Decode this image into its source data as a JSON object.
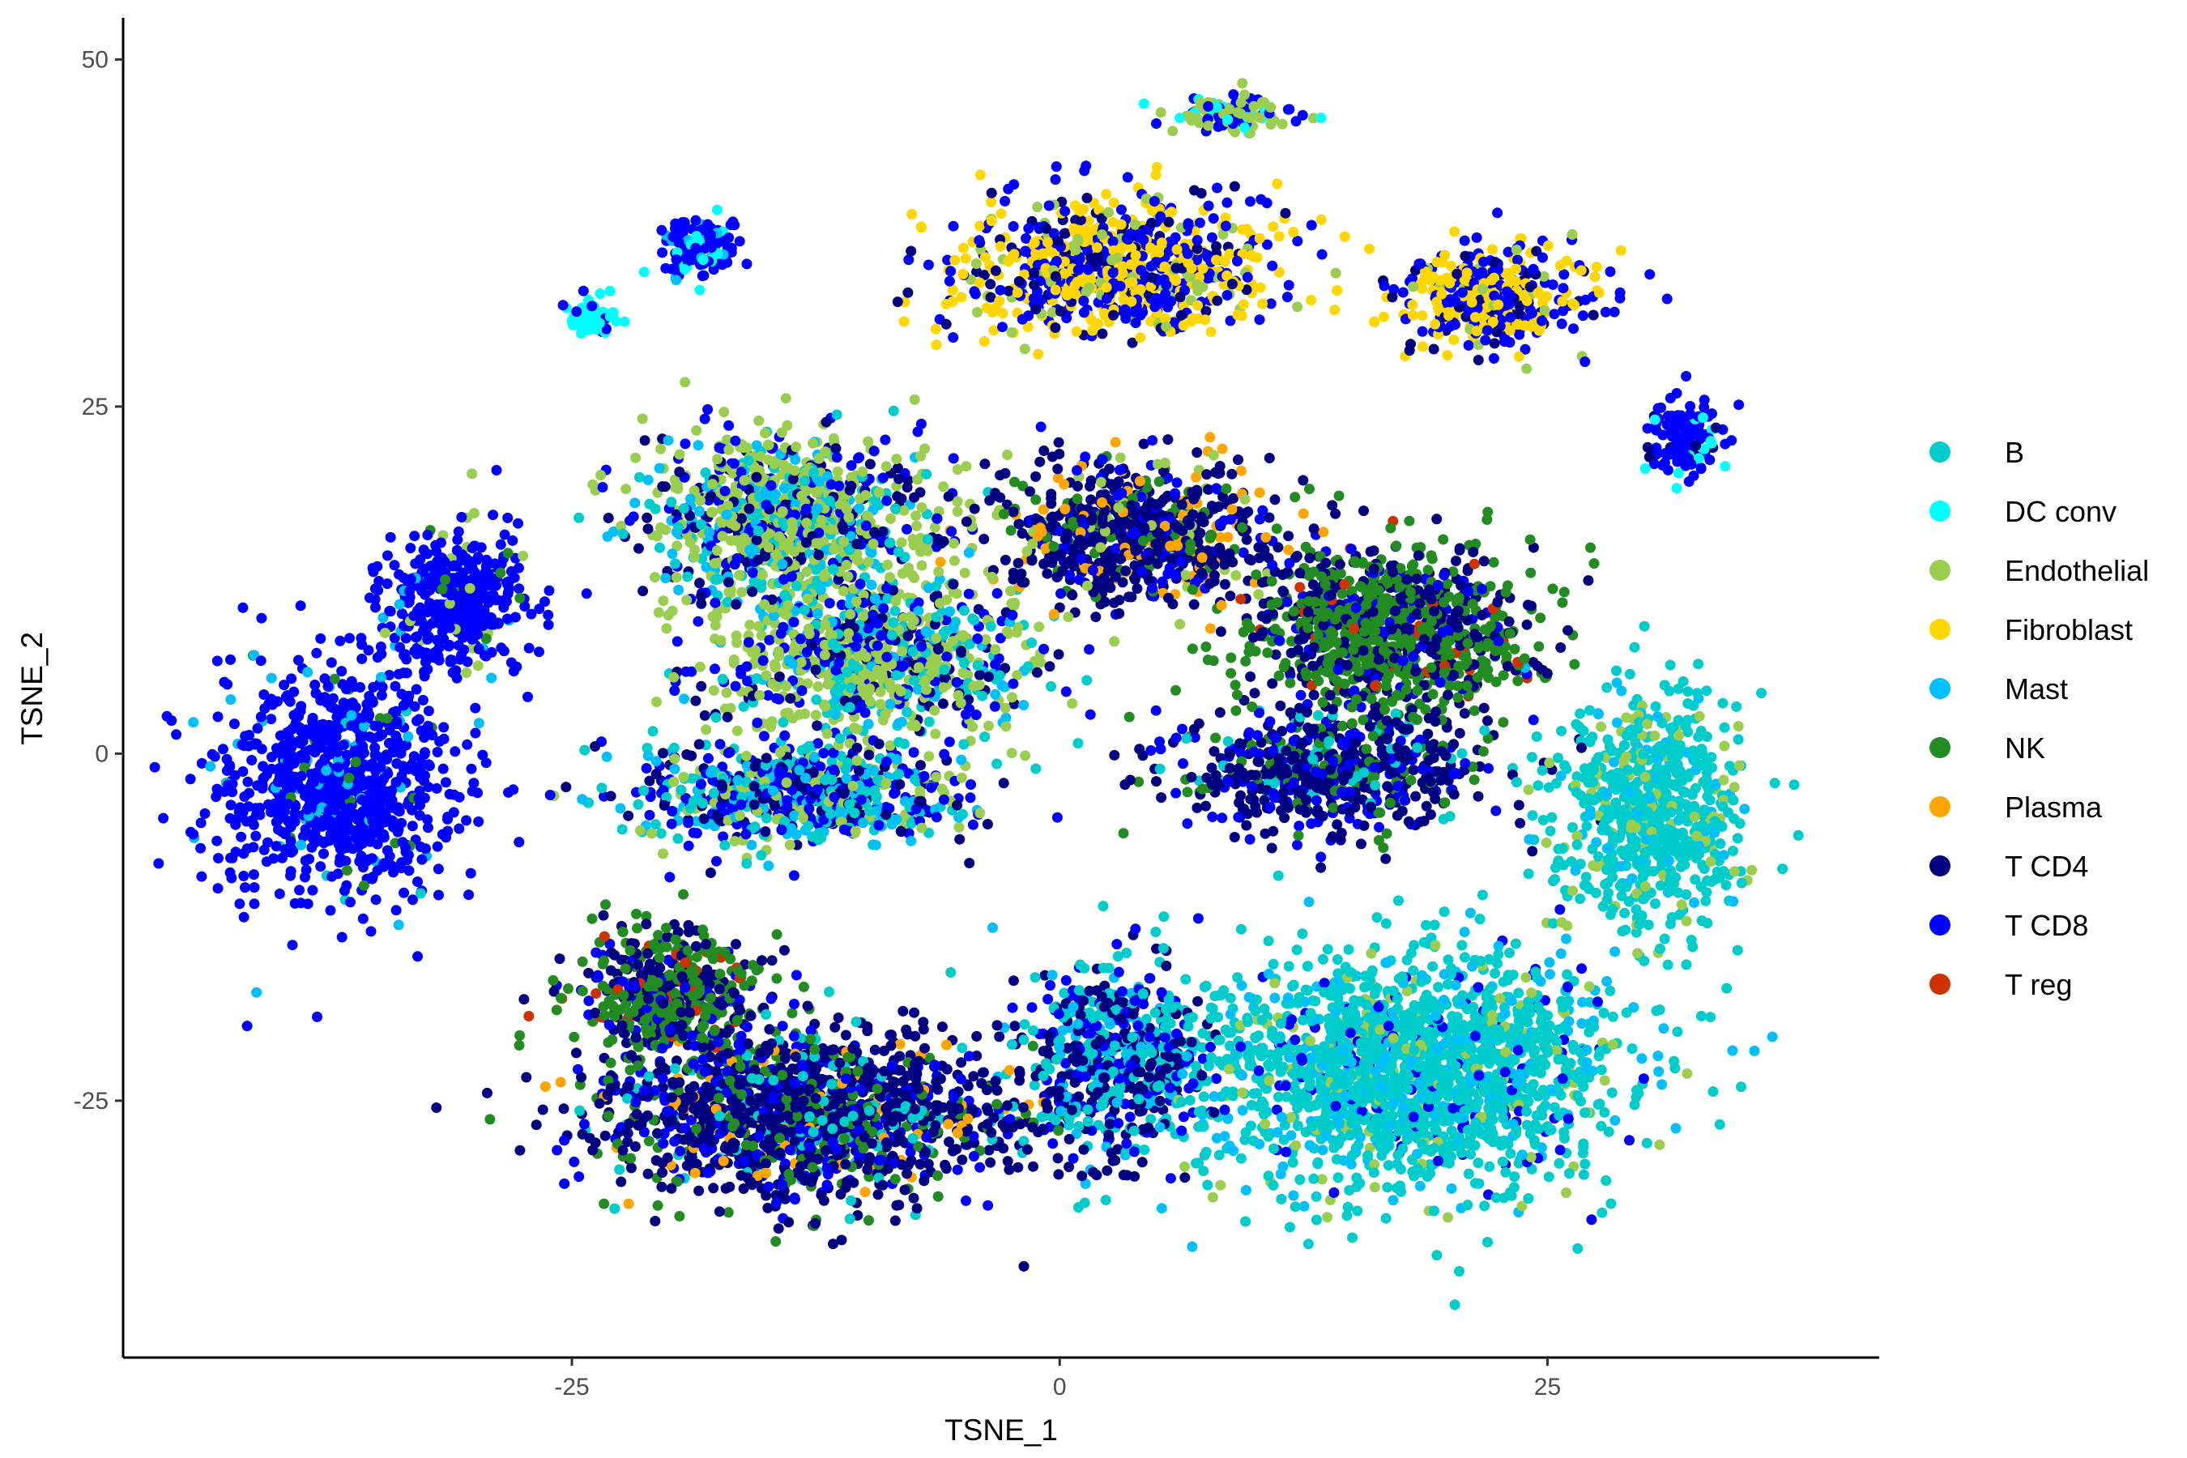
{
  "chart_data": {
    "type": "scatter",
    "title": "",
    "xlabel": "TSNE_1",
    "ylabel": "TSNE_2",
    "xlim": [
      -48,
      42
    ],
    "ylim": [
      -43.5,
      53
    ],
    "x_ticks": [
      -25,
      0,
      25
    ],
    "y_ticks": [
      -25,
      0,
      25,
      50
    ],
    "x_tick_labels": [
      "-25",
      "0",
      "25"
    ],
    "y_tick_labels": [
      "-25",
      "0",
      "25",
      "50"
    ],
    "grid": false,
    "legend_position": "right",
    "series": [
      {
        "name": "B",
        "color": "#00CCCC"
      },
      {
        "name": "DC conv",
        "color": "#00FFFF"
      },
      {
        "name": "Endothelial",
        "color": "#9ACD50"
      },
      {
        "name": "Fibroblast",
        "color": "#FFD700"
      },
      {
        "name": "Mast",
        "color": "#00BFFF"
      },
      {
        "name": "NK",
        "color": "#228B22"
      },
      {
        "name": "Plasma",
        "color": "#FFA500"
      },
      {
        "name": "T CD4",
        "color": "#000080"
      },
      {
        "name": "T CD8",
        "color": "#0000FF"
      },
      {
        "name": "T reg",
        "color": "#CC3300"
      }
    ],
    "clusters": [
      {
        "center": [
          -37,
          -2
        ],
        "spread": [
          5,
          7
        ],
        "n": 900,
        "mix": {
          "T CD8": 0.92,
          "Mast": 0.04,
          "B": 0.02,
          "NK": 0.02
        }
      },
      {
        "center": [
          -31,
          11
        ],
        "spread": [
          3,
          4
        ],
        "n": 450,
        "mix": {
          "T CD8": 0.88,
          "Endothelial": 0.04,
          "Mast": 0.04,
          "NK": 0.04
        }
      },
      {
        "center": [
          -14,
          17
        ],
        "spread": [
          6,
          5
        ],
        "n": 1000,
        "mix": {
          "Endothelial": 0.45,
          "B": 0.15,
          "T CD8": 0.15,
          "T CD4": 0.15,
          "Mast": 0.1
        }
      },
      {
        "center": [
          -10,
          7
        ],
        "spread": [
          7,
          5
        ],
        "n": 900,
        "mix": {
          "Endothelial": 0.4,
          "B": 0.18,
          "T CD8": 0.2,
          "T CD4": 0.12,
          "Mast": 0.1
        }
      },
      {
        "center": [
          -13,
          -3
        ],
        "spread": [
          7,
          3
        ],
        "n": 700,
        "mix": {
          "T CD8": 0.3,
          "B": 0.2,
          "T CD4": 0.2,
          "Endothelial": 0.15,
          "Mast": 0.15
        }
      },
      {
        "center": [
          4,
          16
        ],
        "spread": [
          6,
          4
        ],
        "n": 800,
        "mix": {
          "T CD4": 0.55,
          "T CD8": 0.15,
          "Plasma": 0.12,
          "NK": 0.1,
          "Endothelial": 0.08
        }
      },
      {
        "center": [
          17,
          9
        ],
        "spread": [
          6,
          5
        ],
        "n": 1000,
        "mix": {
          "NK": 0.55,
          "T CD4": 0.35,
          "T CD8": 0.07,
          "T reg": 0.03
        }
      },
      {
        "center": [
          14,
          -1
        ],
        "spread": [
          7,
          4
        ],
        "n": 600,
        "mix": {
          "T CD4": 0.55,
          "T CD8": 0.2,
          "NK": 0.15,
          "B": 0.1
        }
      },
      {
        "center": [
          30,
          -4
        ],
        "spread": [
          4,
          7
        ],
        "n": 700,
        "mix": {
          "B": 0.75,
          "Endothelial": 0.15,
          "Mast": 0.1
        }
      },
      {
        "center": [
          18,
          -23
        ],
        "spread": [
          9,
          7
        ],
        "n": 1800,
        "mix": {
          "B": 0.7,
          "Mast": 0.15,
          "Endothelial": 0.08,
          "T CD8": 0.07
        }
      },
      {
        "center": [
          -13,
          -26
        ],
        "spread": [
          9,
          5
        ],
        "n": 1500,
        "mix": {
          "T CD4": 0.55,
          "T CD8": 0.2,
          "NK": 0.12,
          "B": 0.08,
          "Plasma": 0.05
        }
      },
      {
        "center": [
          -20,
          -17
        ],
        "spread": [
          4,
          4
        ],
        "n": 500,
        "mix": {
          "NK": 0.55,
          "T CD4": 0.3,
          "T CD8": 0.1,
          "T reg": 0.05
        }
      },
      {
        "center": [
          3,
          -22
        ],
        "spread": [
          4,
          6
        ],
        "n": 600,
        "mix": {
          "T CD4": 0.35,
          "B": 0.35,
          "T CD8": 0.2,
          "Mast": 0.1
        }
      },
      {
        "center": [
          3,
          35
        ],
        "spread": [
          7,
          4
        ],
        "n": 800,
        "mix": {
          "Fibroblast": 0.4,
          "T CD8": 0.35,
          "T CD4": 0.15,
          "Endothelial": 0.1
        }
      },
      {
        "center": [
          22,
          33
        ],
        "spread": [
          4,
          3
        ],
        "n": 400,
        "mix": {
          "Fibroblast": 0.45,
          "T CD8": 0.4,
          "T CD4": 0.1,
          "Endothelial": 0.05
        }
      },
      {
        "center": [
          -18.5,
          36.5
        ],
        "spread": [
          1.8,
          1.8
        ],
        "n": 120,
        "mix": {
          "T CD8": 0.75,
          "DC conv": 0.15,
          "Mast": 0.1
        }
      },
      {
        "center": [
          -24,
          31.5
        ],
        "spread": [
          1.2,
          1.2
        ],
        "n": 60,
        "mix": {
          "DC conv": 0.8,
          "T CD8": 0.2
        }
      },
      {
        "center": [
          9,
          46
        ],
        "spread": [
          2.5,
          1
        ],
        "n": 120,
        "mix": {
          "Endothelial": 0.5,
          "T CD8": 0.3,
          "DC conv": 0.2
        }
      },
      {
        "center": [
          32,
          23
        ],
        "spread": [
          1.6,
          2.4
        ],
        "n": 120,
        "mix": {
          "T CD8": 0.8,
          "DC conv": 0.15,
          "T CD4": 0.05
        }
      }
    ]
  }
}
